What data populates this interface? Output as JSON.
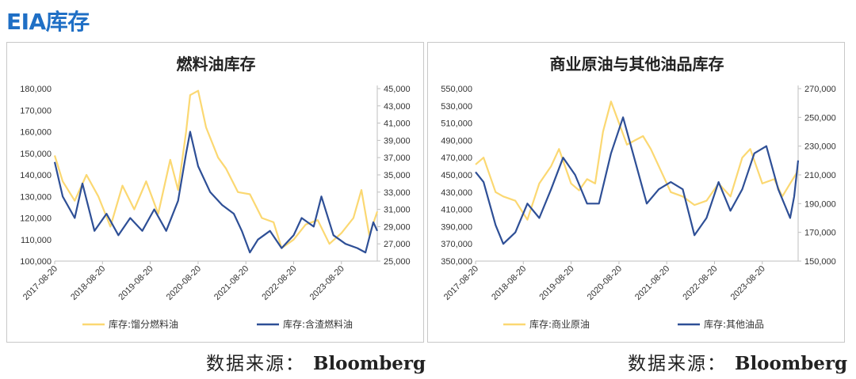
{
  "page": {
    "title": "EIA库存"
  },
  "source": {
    "label": "数据来源：",
    "name": "Bloomberg"
  },
  "colors": {
    "primary": "#fbd872",
    "secondary": "#2e4f96",
    "accent": "#1f6fc5"
  },
  "chart_data": [
    {
      "type": "line",
      "title": "燃料油库存",
      "x_ticks": [
        "2017-08-20",
        "2018-08-20",
        "2019-08-20",
        "2020-08-20",
        "2021-08-20",
        "2022-08-20",
        "2023-08-20"
      ],
      "y_left": {
        "range": [
          100000,
          180000
        ],
        "ticks": [
          "100,000",
          "110,000",
          "120,000",
          "130,000",
          "140,000",
          "150,000",
          "160,000",
          "170,000",
          "180,000"
        ]
      },
      "y_right": {
        "range": [
          25000,
          45000
        ],
        "ticks": [
          "25,000",
          "27,000",
          "29,000",
          "31,000",
          "33,000",
          "35,000",
          "37,000",
          "39,000",
          "41,000",
          "43,000",
          "45,000"
        ]
      },
      "legend_position": "bottom",
      "series": [
        {
          "name": "库存:馏分燃料油",
          "axis": "left",
          "color": "#fbd872",
          "x": [
            "2017-08-20",
            "2017-10-20",
            "2018-01-20",
            "2018-04-20",
            "2018-07-20",
            "2018-10-20",
            "2019-01-20",
            "2019-04-20",
            "2019-07-20",
            "2019-10-20",
            "2020-01-20",
            "2020-03-20",
            "2020-05-20",
            "2020-06-20",
            "2020-08-20",
            "2020-10-20",
            "2021-01-20",
            "2021-03-20",
            "2021-06-20",
            "2021-09-20",
            "2021-12-20",
            "2022-03-20",
            "2022-05-20",
            "2022-08-20",
            "2022-11-20",
            "2023-02-20",
            "2023-05-20",
            "2023-08-20",
            "2023-11-20",
            "2024-01-20",
            "2024-03-20",
            "2024-05-20"
          ],
          "values": [
            149000,
            137000,
            128000,
            140000,
            130000,
            116000,
            135000,
            124000,
            137000,
            122000,
            147000,
            133000,
            160000,
            177000,
            179000,
            162000,
            148000,
            143000,
            132000,
            131000,
            120000,
            118000,
            106000,
            110000,
            117000,
            119000,
            108000,
            113000,
            120000,
            133000,
            112000,
            123000
          ]
        },
        {
          "name": "库存:含渣燃料油",
          "axis": "right",
          "color": "#2e4f96",
          "x": [
            "2017-08-20",
            "2017-10-20",
            "2018-01-20",
            "2018-03-20",
            "2018-06-20",
            "2018-09-20",
            "2018-12-20",
            "2019-03-20",
            "2019-06-20",
            "2019-09-20",
            "2019-12-20",
            "2020-03-20",
            "2020-05-20",
            "2020-06-20",
            "2020-08-20",
            "2020-11-20",
            "2021-02-20",
            "2021-05-20",
            "2021-07-20",
            "2021-09-20",
            "2021-11-20",
            "2022-02-20",
            "2022-05-20",
            "2022-08-20",
            "2022-10-20",
            "2023-01-20",
            "2023-03-20",
            "2023-06-20",
            "2023-09-20",
            "2023-12-20",
            "2024-02-20",
            "2024-04-20",
            "2024-05-20"
          ],
          "values": [
            36500,
            32500,
            30000,
            34000,
            28500,
            30500,
            28000,
            30000,
            28500,
            31000,
            28500,
            32000,
            37500,
            40000,
            36000,
            33000,
            31500,
            30500,
            28500,
            26000,
            27500,
            28500,
            26500,
            28000,
            30000,
            29000,
            32500,
            28000,
            27000,
            26500,
            26000,
            29500,
            28500
          ]
        }
      ]
    },
    {
      "type": "line",
      "title": "商业原油与其他油品库存",
      "x_ticks": [
        "2017-08-20",
        "2018-08-20",
        "2019-08-20",
        "2020-08-20",
        "2021-08-20",
        "2022-08-20",
        "2023-08-20"
      ],
      "y_left": {
        "range": [
          350000,
          550000
        ],
        "ticks": [
          "350,000",
          "370,000",
          "390,000",
          "410,000",
          "430,000",
          "450,000",
          "470,000",
          "490,000",
          "510,000",
          "530,000",
          "550,000"
        ]
      },
      "y_right": {
        "range": [
          150000,
          270000
        ],
        "ticks": [
          "150,000",
          "170,000",
          "190,000",
          "210,000",
          "230,000",
          "250,000",
          "270,000"
        ]
      },
      "legend_position": "bottom",
      "series": [
        {
          "name": "库存:商业原油",
          "axis": "left",
          "color": "#fbd872",
          "x": [
            "2017-08-20",
            "2017-10-20",
            "2018-01-20",
            "2018-03-20",
            "2018-06-20",
            "2018-09-20",
            "2018-12-20",
            "2019-03-20",
            "2019-05-20",
            "2019-08-20",
            "2019-10-20",
            "2019-12-20",
            "2020-02-20",
            "2020-04-20",
            "2020-06-20",
            "2020-08-20",
            "2020-10-20",
            "2020-12-20",
            "2021-02-20",
            "2021-04-20",
            "2021-06-20",
            "2021-09-20",
            "2021-12-20",
            "2022-03-20",
            "2022-06-20",
            "2022-09-20",
            "2022-12-20",
            "2023-03-20",
            "2023-05-20",
            "2023-08-20",
            "2023-11-20",
            "2024-01-20",
            "2024-03-20",
            "2024-05-20"
          ],
          "values": [
            462000,
            470000,
            430000,
            425000,
            420000,
            398000,
            440000,
            460000,
            480000,
            440000,
            432000,
            445000,
            440000,
            500000,
            535000,
            510000,
            485000,
            490000,
            495000,
            480000,
            460000,
            430000,
            425000,
            415000,
            420000,
            440000,
            425000,
            470000,
            480000,
            440000,
            445000,
            425000,
            440000,
            455000
          ]
        },
        {
          "name": "库存:其他油品",
          "axis": "right",
          "color": "#2e4f96",
          "x": [
            "2017-08-20",
            "2017-10-20",
            "2018-01-20",
            "2018-03-20",
            "2018-06-20",
            "2018-09-20",
            "2018-12-20",
            "2019-03-20",
            "2019-06-20",
            "2019-09-20",
            "2019-12-20",
            "2020-03-20",
            "2020-06-20",
            "2020-09-20",
            "2020-12-20",
            "2021-03-20",
            "2021-06-20",
            "2021-09-20",
            "2021-12-20",
            "2022-03-20",
            "2022-06-20",
            "2022-09-20",
            "2022-12-20",
            "2023-03-20",
            "2023-06-20",
            "2023-09-20",
            "2023-12-20",
            "2024-03-20",
            "2024-04-20",
            "2024-05-20"
          ],
          "values": [
            212000,
            205000,
            175000,
            162000,
            170000,
            190000,
            180000,
            200000,
            222000,
            210000,
            190000,
            190000,
            225000,
            250000,
            220000,
            190000,
            200000,
            205000,
            200000,
            168000,
            180000,
            205000,
            185000,
            200000,
            225000,
            230000,
            200000,
            180000,
            195000,
            220000
          ]
        }
      ]
    }
  ]
}
